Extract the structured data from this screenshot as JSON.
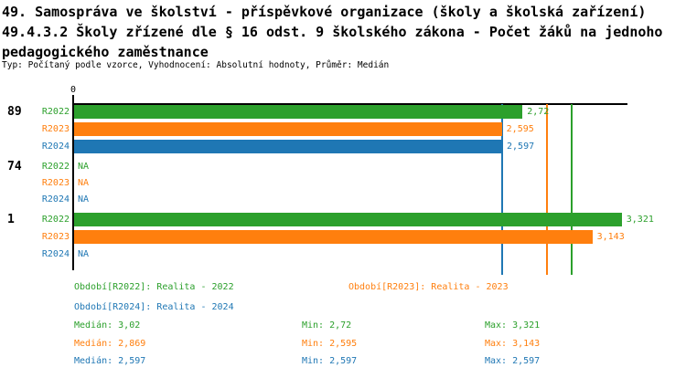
{
  "header": {
    "title_line1": "49. Samospráva ve školství - příspěvkové organizace (školy a školská zařízení)",
    "title_line2": "49.4.3.2 Školy zřízené dle § 16 odst. 9 školského zákona - Počet žáků na jednoho",
    "title_line3": "pedagogického zaměstnance",
    "subtitle": "Typ: Počítaný podle vzorce, Vyhodnocení: Absolutní hodnoty, Průměr: Medián"
  },
  "colors": {
    "R2022": "#2ca02c",
    "R2023": "#ff7f0e",
    "R2024": "#1f77b4",
    "axis": "#000000"
  },
  "chart_data": {
    "type": "bar",
    "orientation": "horizontal",
    "value_axis": {
      "min": 0,
      "max": 3.357,
      "zero_tick_label": "0"
    },
    "series_names": [
      "R2022",
      "R2023",
      "R2024"
    ],
    "na_text": "NA",
    "groups": [
      {
        "label": "89",
        "bars": [
          {
            "series": "R2022",
            "value": 2.72,
            "value_label": "2,72"
          },
          {
            "series": "R2023",
            "value": 2.595,
            "value_label": "2,595"
          },
          {
            "series": "R2024",
            "value": 2.597,
            "value_label": "2,597"
          }
        ]
      },
      {
        "label": "74",
        "bars": [
          {
            "series": "R2022",
            "value": null,
            "value_label": "NA"
          },
          {
            "series": "R2023",
            "value": null,
            "value_label": "NA"
          },
          {
            "series": "R2024",
            "value": null,
            "value_label": "NA"
          }
        ]
      },
      {
        "label": "1",
        "bars": [
          {
            "series": "R2022",
            "value": 3.321,
            "value_label": "3,321"
          },
          {
            "series": "R2023",
            "value": 3.143,
            "value_label": "3,143"
          },
          {
            "series": "R2024",
            "value": null,
            "value_label": "NA"
          }
        ]
      }
    ],
    "median_lines": [
      {
        "series": "R2022",
        "value": 3.02
      },
      {
        "series": "R2023",
        "value": 2.869
      },
      {
        "series": "R2024",
        "value": 2.597
      }
    ]
  },
  "legend": {
    "items": [
      {
        "series": "R2022",
        "label": "Období[R2022]: Realita - 2022"
      },
      {
        "series": "R2023",
        "label": "Období[R2023]: Realita - 2023"
      },
      {
        "series": "R2024",
        "label": "Období[R2024]: Realita - 2024"
      }
    ]
  },
  "stats": {
    "rows": [
      {
        "series": "R2022",
        "median": "Medián: 3,02",
        "min": "Min: 2,72",
        "max": "Max: 3,321"
      },
      {
        "series": "R2023",
        "median": "Medián: 2,869",
        "min": "Min: 2,595",
        "max": "Max: 3,143"
      },
      {
        "series": "R2024",
        "median": "Medián: 2,597",
        "min": "Min: 2,597",
        "max": "Max: 2,597"
      }
    ]
  }
}
